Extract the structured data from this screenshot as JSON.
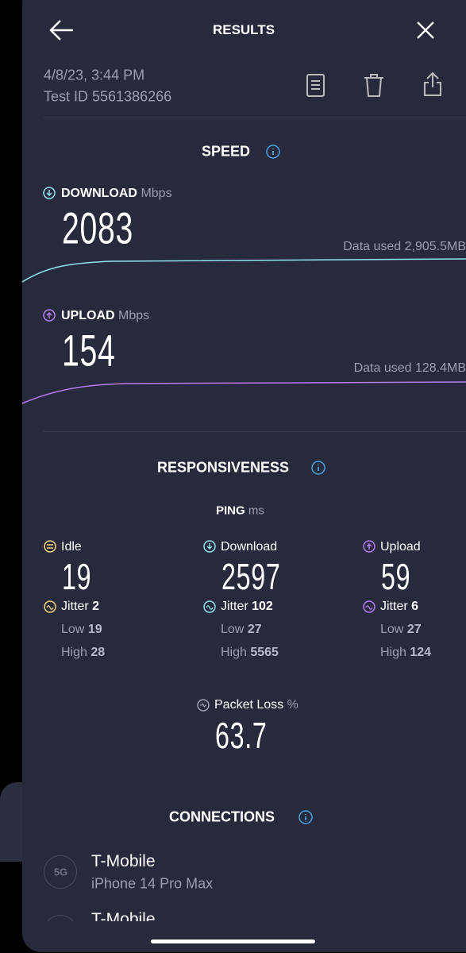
{
  "header": {
    "title": "RESULTS"
  },
  "meta": {
    "date": "4/8/23, 3:44 PM",
    "test_id": "Test ID 5561386266"
  },
  "speed": {
    "title": "SPEED",
    "download": {
      "label": "DOWNLOAD",
      "unit": "Mbps",
      "value": "2083",
      "data_used": "Data used 2,905.5MB"
    },
    "upload": {
      "label": "UPLOAD",
      "unit": "Mbps",
      "value": "154",
      "data_used": "Data used 128.4MB"
    }
  },
  "responsiveness": {
    "title": "RESPONSIVENESS",
    "ping": {
      "label": "PING",
      "unit": "ms"
    },
    "columns": [
      {
        "label": "Idle",
        "value": "19",
        "jitter_label": "Jitter",
        "jitter": "2",
        "low_label": "Low",
        "low": "19",
        "high_label": "High",
        "high": "28"
      },
      {
        "label": "Download",
        "value": "2597",
        "jitter_label": "Jitter",
        "jitter": "102",
        "low_label": "Low",
        "low": "27",
        "high_label": "High",
        "high": "5565"
      },
      {
        "label": "Upload",
        "value": "59",
        "jitter_label": "Jitter",
        "jitter": "6",
        "low_label": "Low",
        "low": "27",
        "high_label": "High",
        "high": "124"
      }
    ],
    "packet_loss": {
      "label": "Packet Loss",
      "unit": "%",
      "value": "63.7"
    }
  },
  "connections": {
    "title": "CONNECTIONS",
    "items": [
      {
        "badge": "5G",
        "provider": "T-Mobile",
        "device": "iPhone 14 Pro Max"
      },
      {
        "provider": "T-Mobile"
      }
    ]
  }
}
